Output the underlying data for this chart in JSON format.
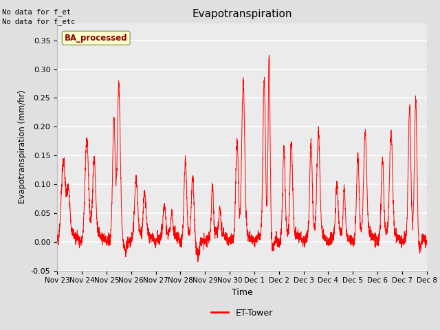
{
  "title": "Evapotranspiration",
  "ylabel": "Evapotranspiration (mm/hr)",
  "xlabel": "Time",
  "annotation_lines": [
    "No data for f_et",
    "No data for f_etc"
  ],
  "legend_box_label": "BA_processed",
  "legend_line_label": "ET-Tower",
  "ylim": [
    -0.05,
    0.38
  ],
  "fig_bg_color": "#e0e0e0",
  "plot_bg_color": "#ebebeb",
  "line_color": "red",
  "legend_box_facecolor": "#ffffcc",
  "legend_box_edgecolor": "#999966",
  "legend_box_textcolor": "#8b0000",
  "grid_color": "white",
  "tick_labels": [
    "Nov 23",
    "Nov 24",
    "Nov 25",
    "Nov 26",
    "Nov 27",
    "Nov 28",
    "Nov 29",
    "Nov 30",
    "Dec 1",
    "Dec 2",
    "Dec 3",
    "Dec 4",
    "Dec 5",
    "Dec 6",
    "Dec 7",
    "Dec 8"
  ],
  "yticks": [
    -0.05,
    0.0,
    0.05,
    0.1,
    0.15,
    0.2,
    0.25,
    0.3,
    0.35
  ],
  "days": 15,
  "n_points": 3000
}
